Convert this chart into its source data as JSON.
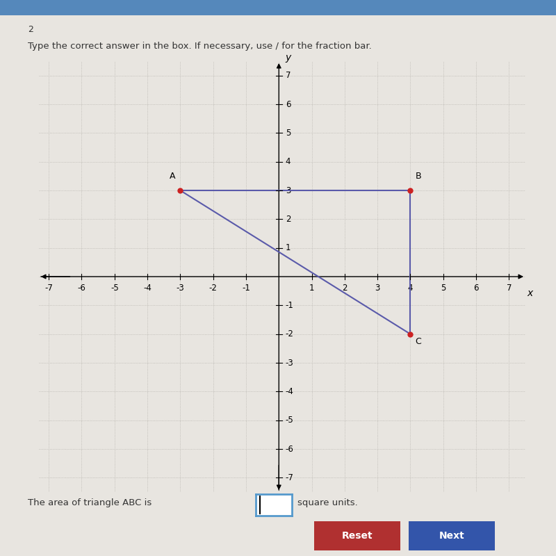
{
  "page_bg": "#e8e5e0",
  "graph_bg": "#d8d5cf",
  "question_number": "2",
  "instruction": "Type the correct answer in the box. If necessary, use / for the fraction bar.",
  "points": {
    "A": [
      -3,
      3
    ],
    "B": [
      4,
      3
    ],
    "C": [
      4,
      -2
    ]
  },
  "point_color": "#cc2222",
  "line_color": "#5a5aaa",
  "line_width": 1.5,
  "axis_range": [
    -7,
    7
  ],
  "grid_color": "#b8b5af",
  "tick_fontsize": 8.5,
  "label_fontsize": 10,
  "bottom_text": "The area of triangle ABC is",
  "bottom_text2": "square units.",
  "reset_button_color": "#b03030",
  "next_button_color": "#3355aa",
  "header_color": "#5588bb",
  "input_border_color": "#5599cc"
}
